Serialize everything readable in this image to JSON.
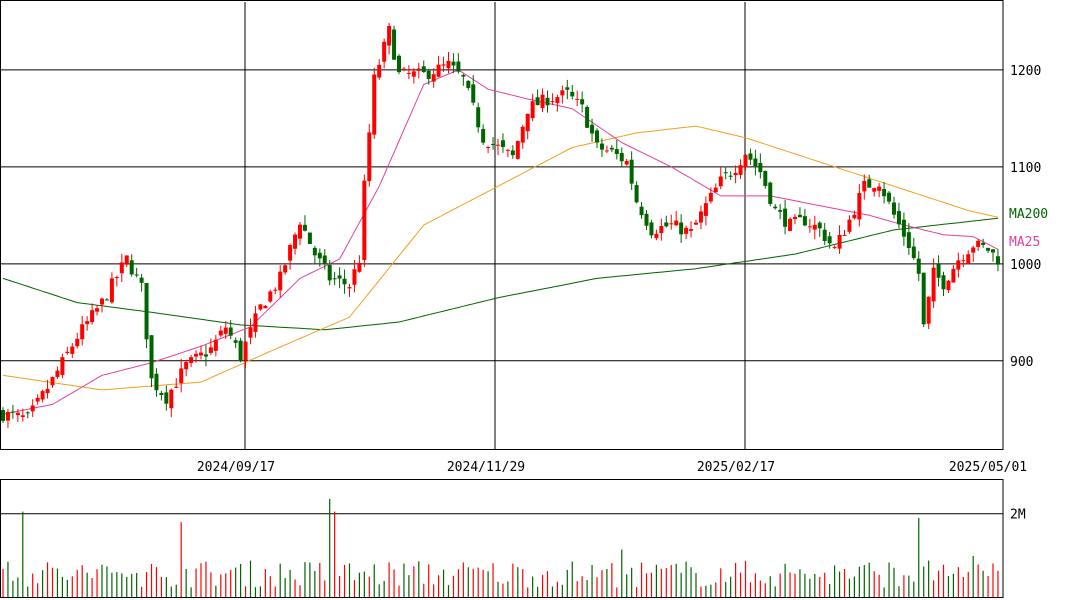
{
  "chart_data": {
    "type": "candlestick",
    "price_axis": {
      "ylim": [
        808,
        1270
      ],
      "ticks": [
        900,
        1000,
        1100,
        1200
      ],
      "tick_labels": [
        "900",
        "1000",
        "1100",
        "1200"
      ]
    },
    "date_axis": {
      "labels": [
        "2024/09/17",
        "2024/11/29",
        "2025/02/17",
        "2025/05/01"
      ]
    },
    "volume_axis": {
      "ylim": [
        0,
        2800000
      ],
      "ticks": [
        2000000
      ],
      "tick_labels": [
        "2M"
      ]
    },
    "colors": {
      "up": "#ff0000",
      "down": "#006400",
      "ma25": "#e040a0",
      "ma75": "#f0a020",
      "ma200": "#006400",
      "grid": "#000000"
    },
    "legend": [
      {
        "label": "MA200",
        "color": "#006400"
      },
      {
        "label": "MA25",
        "color": "#e040a0"
      }
    ],
    "close_anchors": [
      [
        0,
        845
      ],
      [
        5,
        840
      ],
      [
        10,
        880
      ],
      [
        15,
        925
      ],
      [
        20,
        960
      ],
      [
        25,
        1005
      ],
      [
        28,
        975
      ],
      [
        30,
        880
      ],
      [
        33,
        862
      ],
      [
        37,
        895
      ],
      [
        42,
        912
      ],
      [
        45,
        935
      ],
      [
        48,
        905
      ],
      [
        52,
        955
      ],
      [
        56,
        985
      ],
      [
        60,
        1045
      ],
      [
        63,
        1010
      ],
      [
        66,
        985
      ],
      [
        70,
        978
      ],
      [
        72,
        1005
      ],
      [
        73,
        1080
      ],
      [
        75,
        1190
      ],
      [
        78,
        1240
      ],
      [
        80,
        1195
      ],
      [
        85,
        1195
      ],
      [
        90,
        1205
      ],
      [
        93,
        1190
      ],
      [
        97,
        1130
      ],
      [
        100,
        1120
      ],
      [
        103,
        1110
      ],
      [
        106,
        1160
      ],
      [
        110,
        1170
      ],
      [
        114,
        1175
      ],
      [
        117,
        1160
      ],
      [
        120,
        1120
      ],
      [
        123,
        1115
      ],
      [
        126,
        1105
      ],
      [
        128,
        1065
      ],
      [
        131,
        1035
      ],
      [
        135,
        1040
      ],
      [
        139,
        1032
      ],
      [
        142,
        1060
      ],
      [
        145,
        1085
      ],
      [
        148,
        1100
      ],
      [
        150,
        1115
      ],
      [
        153,
        1095
      ],
      [
        156,
        1055
      ],
      [
        159,
        1040
      ],
      [
        162,
        1045
      ],
      [
        165,
        1035
      ],
      [
        168,
        1015
      ],
      [
        171,
        1045
      ],
      [
        174,
        1080
      ],
      [
        177,
        1085
      ],
      [
        180,
        1050
      ],
      [
        183,
        1020
      ],
      [
        185,
        990
      ],
      [
        186,
        935
      ],
      [
        188,
        990
      ],
      [
        190,
        980
      ],
      [
        193,
        1005
      ],
      [
        196,
        1020
      ],
      [
        199,
        1015
      ],
      [
        201,
        1005
      ]
    ],
    "ma_anchors": {
      "ma200": [
        [
          0,
          985
        ],
        [
          15,
          960
        ],
        [
          30,
          950
        ],
        [
          48,
          937
        ],
        [
          65,
          932
        ],
        [
          80,
          940
        ],
        [
          100,
          965
        ],
        [
          120,
          985
        ],
        [
          140,
          995
        ],
        [
          160,
          1010
        ],
        [
          180,
          1035
        ],
        [
          201,
          1047
        ]
      ],
      "ma75": [
        [
          0,
          885
        ],
        [
          20,
          870
        ],
        [
          40,
          878
        ],
        [
          55,
          912
        ],
        [
          70,
          945
        ],
        [
          85,
          1040
        ],
        [
          100,
          1080
        ],
        [
          115,
          1120
        ],
        [
          128,
          1135
        ],
        [
          140,
          1142
        ],
        [
          150,
          1130
        ],
        [
          165,
          1105
        ],
        [
          180,
          1080
        ],
        [
          195,
          1055
        ],
        [
          201,
          1048
        ]
      ],
      "ma25": [
        [
          0,
          845
        ],
        [
          10,
          855
        ],
        [
          20,
          885
        ],
        [
          30,
          898
        ],
        [
          40,
          915
        ],
        [
          50,
          935
        ],
        [
          60,
          985
        ],
        [
          68,
          1005
        ],
        [
          76,
          1080
        ],
        [
          85,
          1185
        ],
        [
          92,
          1200
        ],
        [
          98,
          1180
        ],
        [
          106,
          1170
        ],
        [
          115,
          1160
        ],
        [
          125,
          1125
        ],
        [
          135,
          1100
        ],
        [
          145,
          1070
        ],
        [
          155,
          1070
        ],
        [
          165,
          1060
        ],
        [
          175,
          1050
        ],
        [
          182,
          1040
        ],
        [
          190,
          1030
        ],
        [
          196,
          1028
        ],
        [
          201,
          1015
        ]
      ]
    },
    "volume_spikes": [
      [
        4,
        2050000
      ],
      [
        36,
        1800000
      ],
      [
        66,
        2350000
      ],
      [
        67,
        2050000
      ],
      [
        125,
        1150000
      ],
      [
        185,
        1900000
      ],
      [
        196,
        1000000
      ],
      [
        200,
        820000
      ]
    ]
  }
}
